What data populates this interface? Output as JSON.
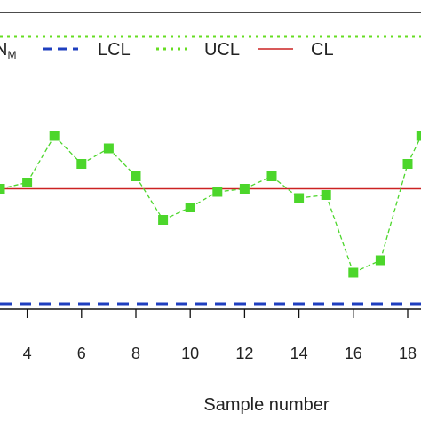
{
  "chart_data": {
    "type": "line",
    "xlabel": "Sample number",
    "x_ticks": [
      4,
      6,
      8,
      10,
      12,
      14,
      16,
      18
    ],
    "x_tick_labels": [
      "4",
      "6",
      "8",
      "10",
      "12",
      "14",
      "16",
      "18"
    ],
    "xlim": [
      2.9,
      18.6
    ],
    "ylim": [
      0,
      1
    ],
    "legend_position": "top",
    "legend": [
      {
        "key": "series",
        "label": "N",
        "subscript": "M",
        "color": "#4cd62b",
        "style": "square-markers"
      },
      {
        "key": "lcl",
        "label": "LCL",
        "color": "#1f3fbf",
        "style": "dashed"
      },
      {
        "key": "ucl",
        "label": "UCL",
        "color": "#66dd22",
        "style": "dotted"
      },
      {
        "key": "cl",
        "label": "CL",
        "color": "#cc2222",
        "style": "solid"
      }
    ],
    "limits": {
      "ucl": 0.94,
      "cl": 0.45,
      "lcl": 0.08
    },
    "series": [
      {
        "name": "N_M",
        "color": "#4cd62b",
        "x": [
          3,
          4,
          5,
          6,
          7,
          8,
          9,
          10,
          11,
          12,
          13,
          14,
          15,
          16,
          17,
          18,
          18.5
        ],
        "y": [
          0.45,
          0.47,
          0.62,
          0.53,
          0.58,
          0.49,
          0.35,
          0.39,
          0.44,
          0.45,
          0.49,
          0.42,
          0.43,
          0.18,
          0.22,
          0.53,
          0.62
        ]
      }
    ]
  }
}
